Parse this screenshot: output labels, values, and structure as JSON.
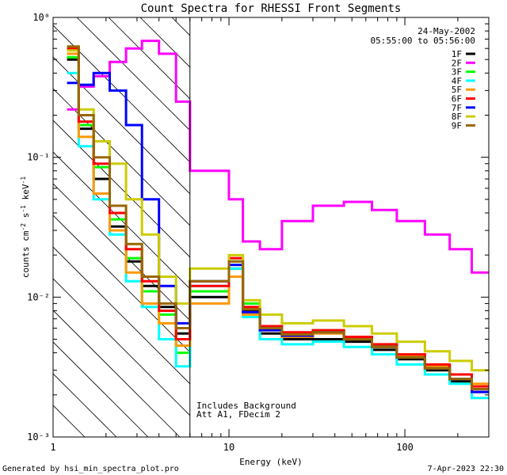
{
  "chart_data": {
    "type": "line",
    "subtype": "step",
    "title": "Count Spectra for RHESSI Front Segments",
    "xlabel": "Energy (keV)",
    "ylabel": "counts cm-2 s-1 keV-1",
    "xscale": "log",
    "yscale": "log",
    "xlim": [
      1,
      300
    ],
    "ylim": [
      0.001,
      1
    ],
    "x_ticks": [
      {
        "value": 1,
        "label": "1"
      },
      {
        "value": 10,
        "label": "10"
      },
      {
        "value": 100,
        "label": "100"
      }
    ],
    "y_ticks": [
      {
        "value": 1,
        "label": "10⁰"
      },
      {
        "value": 0.1,
        "label": "10⁻¹"
      },
      {
        "value": 0.01,
        "label": "10⁻²"
      },
      {
        "value": 0.001,
        "label": "10⁻³"
      }
    ],
    "date": "24-May-2002",
    "time_range": "05:55:00 to 05:56:00",
    "hatched_region": [
      1,
      6
    ],
    "annotations": [
      "Includes Background",
      "Att A1, FDecim 2"
    ],
    "footer_left": "Generated by hsi_min_spectra_plot.pro",
    "footer_right": "7-Apr-2023 22:30",
    "series": [
      {
        "name": "1F",
        "color": "#000000",
        "values": [
          0.5,
          0.16,
          0.07,
          0.032,
          0.018,
          0.012,
          0.0085,
          0.0055,
          0.01,
          0.016,
          0.008,
          0.0055,
          0.005,
          0.005,
          0.0048,
          0.0042,
          0.0036,
          0.003,
          0.0025,
          0.0021
        ]
      },
      {
        "name": "2F",
        "color": "#ff00ff",
        "values": [
          0.22,
          0.32,
          0.38,
          0.48,
          0.6,
          0.68,
          0.55,
          0.25,
          0.08,
          0.05,
          0.025,
          0.022,
          0.035,
          0.045,
          0.048,
          0.042,
          0.035,
          0.028,
          0.022,
          0.015
        ]
      },
      {
        "name": "3F",
        "color": "#00ff00",
        "values": [
          0.52,
          0.17,
          0.085,
          0.036,
          0.019,
          0.011,
          0.0075,
          0.004,
          0.011,
          0.018,
          0.009,
          0.006,
          0.0055,
          0.0058,
          0.0052,
          0.0045,
          0.0038,
          0.0031,
          0.0026,
          0.0022
        ]
      },
      {
        "name": "4F",
        "color": "#00ffff",
        "values": [
          0.4,
          0.12,
          0.05,
          0.028,
          0.013,
          0.0085,
          0.005,
          0.0032,
          0.012,
          0.016,
          0.0072,
          0.005,
          0.0046,
          0.0048,
          0.0044,
          0.0039,
          0.0033,
          0.0028,
          0.0024,
          0.0019
        ]
      },
      {
        "name": "5F",
        "color": "#ff9900",
        "values": [
          0.55,
          0.14,
          0.055,
          0.03,
          0.015,
          0.009,
          0.0065,
          0.0045,
          0.009,
          0.014,
          0.0075,
          0.0058,
          0.0052,
          0.0055,
          0.005,
          0.0044,
          0.0038,
          0.0032,
          0.0028,
          0.0024
        ]
      },
      {
        "name": "6F",
        "color": "#ff0000",
        "values": [
          0.6,
          0.18,
          0.09,
          0.04,
          0.022,
          0.013,
          0.008,
          0.005,
          0.012,
          0.019,
          0.0085,
          0.0062,
          0.0056,
          0.0058,
          0.0052,
          0.0046,
          0.0039,
          0.0033,
          0.0028,
          0.0023
        ]
      },
      {
        "name": "7F",
        "color": "#0000ff",
        "values": [
          0.34,
          0.33,
          0.4,
          0.3,
          0.17,
          0.05,
          0.012,
          0.0065,
          0.013,
          0.017,
          0.0078,
          0.0058,
          0.0053,
          0.0056,
          0.005,
          0.0044,
          0.0037,
          0.0031,
          0.0026,
          0.0021
        ]
      },
      {
        "name": "8F",
        "color": "#cccc00",
        "values": [
          0.58,
          0.22,
          0.13,
          0.09,
          0.05,
          0.028,
          0.014,
          0.009,
          0.016,
          0.02,
          0.0095,
          0.0075,
          0.0065,
          0.0068,
          0.0062,
          0.0055,
          0.0048,
          0.0041,
          0.0035,
          0.003
        ]
      },
      {
        "name": "9F",
        "color": "#996600",
        "values": [
          0.62,
          0.2,
          0.1,
          0.045,
          0.024,
          0.014,
          0.009,
          0.006,
          0.013,
          0.018,
          0.0082,
          0.006,
          0.0054,
          0.0056,
          0.005,
          0.0044,
          0.0037,
          0.0031,
          0.0026,
          0.0022
        ]
      }
    ],
    "energy_edges": [
      1.2,
      1.4,
      1.7,
      2.1,
      2.6,
      3.2,
      4.0,
      5.0,
      6.0,
      10.0,
      12.0,
      15.0,
      20.0,
      30.0,
      45.0,
      65.0,
      90.0,
      130.0,
      180.0,
      240.0,
      300.0
    ]
  }
}
